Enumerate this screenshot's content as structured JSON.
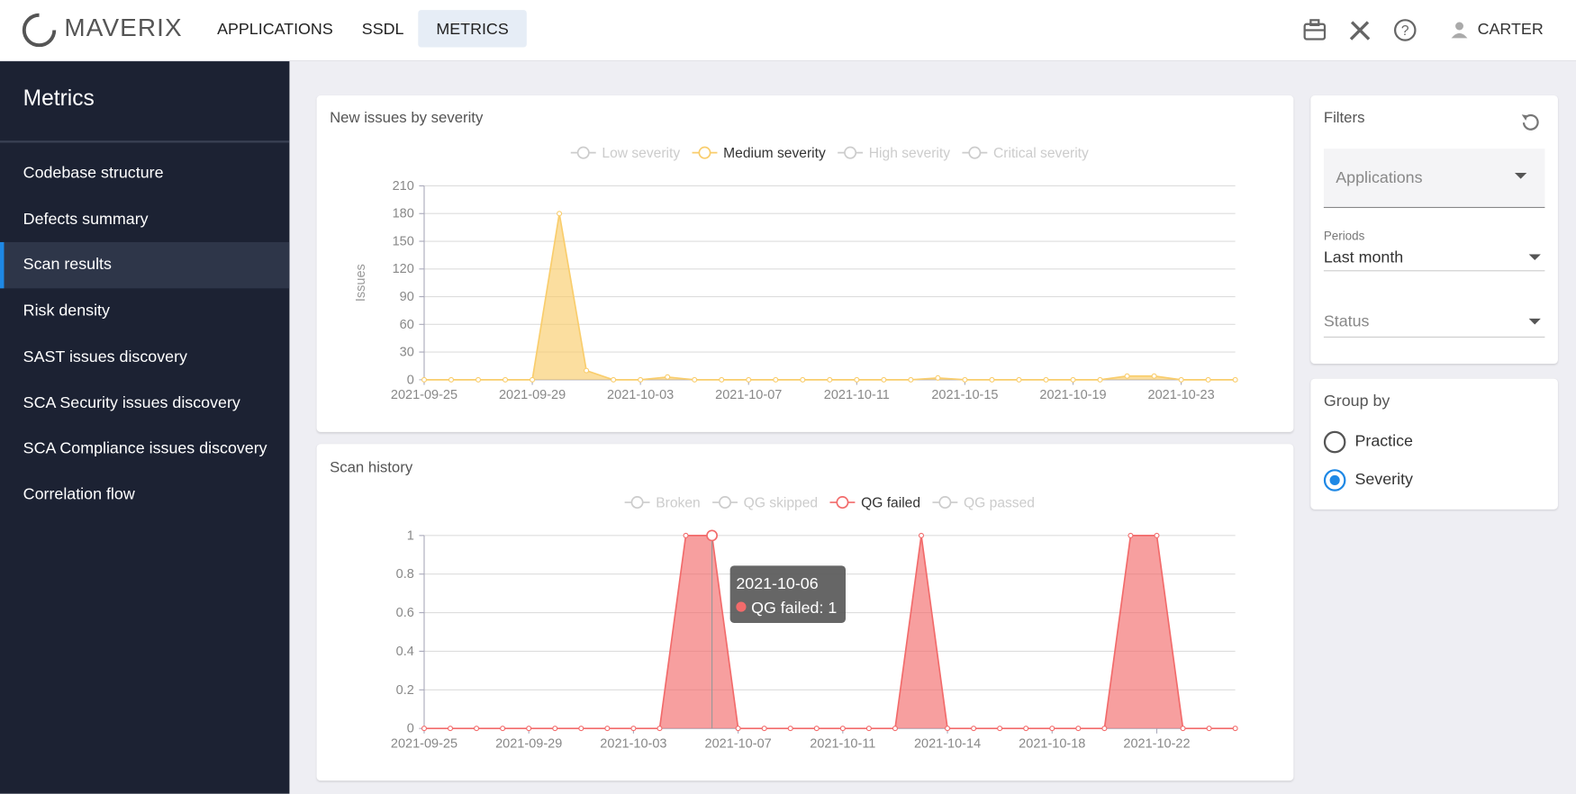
{
  "header": {
    "logo": "MAVERIX",
    "nav": [
      "APPLICATIONS",
      "SSDL",
      "METRICS"
    ],
    "active_nav": 2,
    "user": "CARTER"
  },
  "sidebar": {
    "title": "Metrics",
    "items": [
      "Codebase structure",
      "Defects summary",
      "Scan results",
      "Risk density",
      "SAST issues discovery",
      "SCA Security issues discovery",
      "SCA Compliance issues discovery",
      "Correlation flow"
    ],
    "active": 2
  },
  "chart_data": [
    {
      "type": "line",
      "area": true,
      "title": "New issues by severity",
      "ylabel": "Issues",
      "categories": [
        "2021-09-25",
        null,
        null,
        null,
        "2021-09-29",
        null,
        null,
        null,
        "2021-10-03",
        null,
        null,
        null,
        "2021-10-07",
        null,
        null,
        null,
        "2021-10-11",
        null,
        null,
        null,
        "2021-10-15",
        null,
        null,
        null,
        "2021-10-19",
        null,
        null,
        null,
        "2021-10-23",
        null,
        null
      ],
      "series": [
        {
          "name": "Low severity",
          "color": "#cccccc",
          "visible": false
        },
        {
          "name": "Medium severity",
          "color": "#f9cd6c",
          "visible": true,
          "values": [
            0,
            0,
            0,
            0,
            0,
            180,
            10,
            0,
            0,
            3,
            0,
            0,
            0,
            0,
            0,
            0,
            0,
            0,
            0,
            2,
            0,
            0,
            0,
            0,
            0,
            0,
            4,
            4,
            0,
            0,
            0
          ]
        },
        {
          "name": "High severity",
          "color": "#cccccc",
          "visible": false
        },
        {
          "name": "Critical severity",
          "color": "#cccccc",
          "visible": false
        }
      ],
      "ylim": [
        0,
        210
      ],
      "yticks": [
        0,
        30,
        60,
        90,
        120,
        150,
        180,
        210
      ],
      "grid": true
    },
    {
      "type": "line",
      "area": true,
      "title": "Scan history",
      "categories": [
        "2021-09-25",
        null,
        null,
        null,
        "2021-09-29",
        null,
        null,
        null,
        "2021-10-03",
        null,
        null,
        null,
        "2021-10-07",
        null,
        null,
        null,
        "2021-10-11",
        null,
        null,
        null,
        "2021-10-14",
        null,
        null,
        null,
        "2021-10-18",
        null,
        null,
        null,
        "2021-10-22",
        null,
        null,
        null
      ],
      "series": [
        {
          "name": "Broken",
          "color": "#cccccc",
          "visible": false
        },
        {
          "name": "QG skipped",
          "color": "#cccccc",
          "visible": false
        },
        {
          "name": "QG failed",
          "color": "#f26b6b",
          "visible": true,
          "values": [
            0,
            0,
            0,
            0,
            0,
            0,
            0,
            0,
            0,
            0,
            1,
            1,
            0,
            0,
            0,
            0,
            0,
            0,
            0,
            1,
            0,
            0,
            0,
            0,
            0,
            0,
            0,
            1,
            1,
            0,
            0,
            0
          ]
        },
        {
          "name": "QG passed",
          "color": "#cccccc",
          "visible": false
        }
      ],
      "ylim": [
        0,
        1
      ],
      "yticks": [
        0,
        0.2,
        0.4,
        0.6,
        0.8,
        1
      ],
      "grid": true,
      "tooltip": {
        "index": 11,
        "title": "2021-10-06",
        "label": "QG failed: 1"
      }
    }
  ],
  "filters": {
    "title": "Filters",
    "applications": "Applications",
    "periods_label": "Periods",
    "periods_value": "Last month",
    "status": "Status"
  },
  "group_by": {
    "title": "Group by",
    "options": [
      "Practice",
      "Severity"
    ],
    "selected": 1
  }
}
